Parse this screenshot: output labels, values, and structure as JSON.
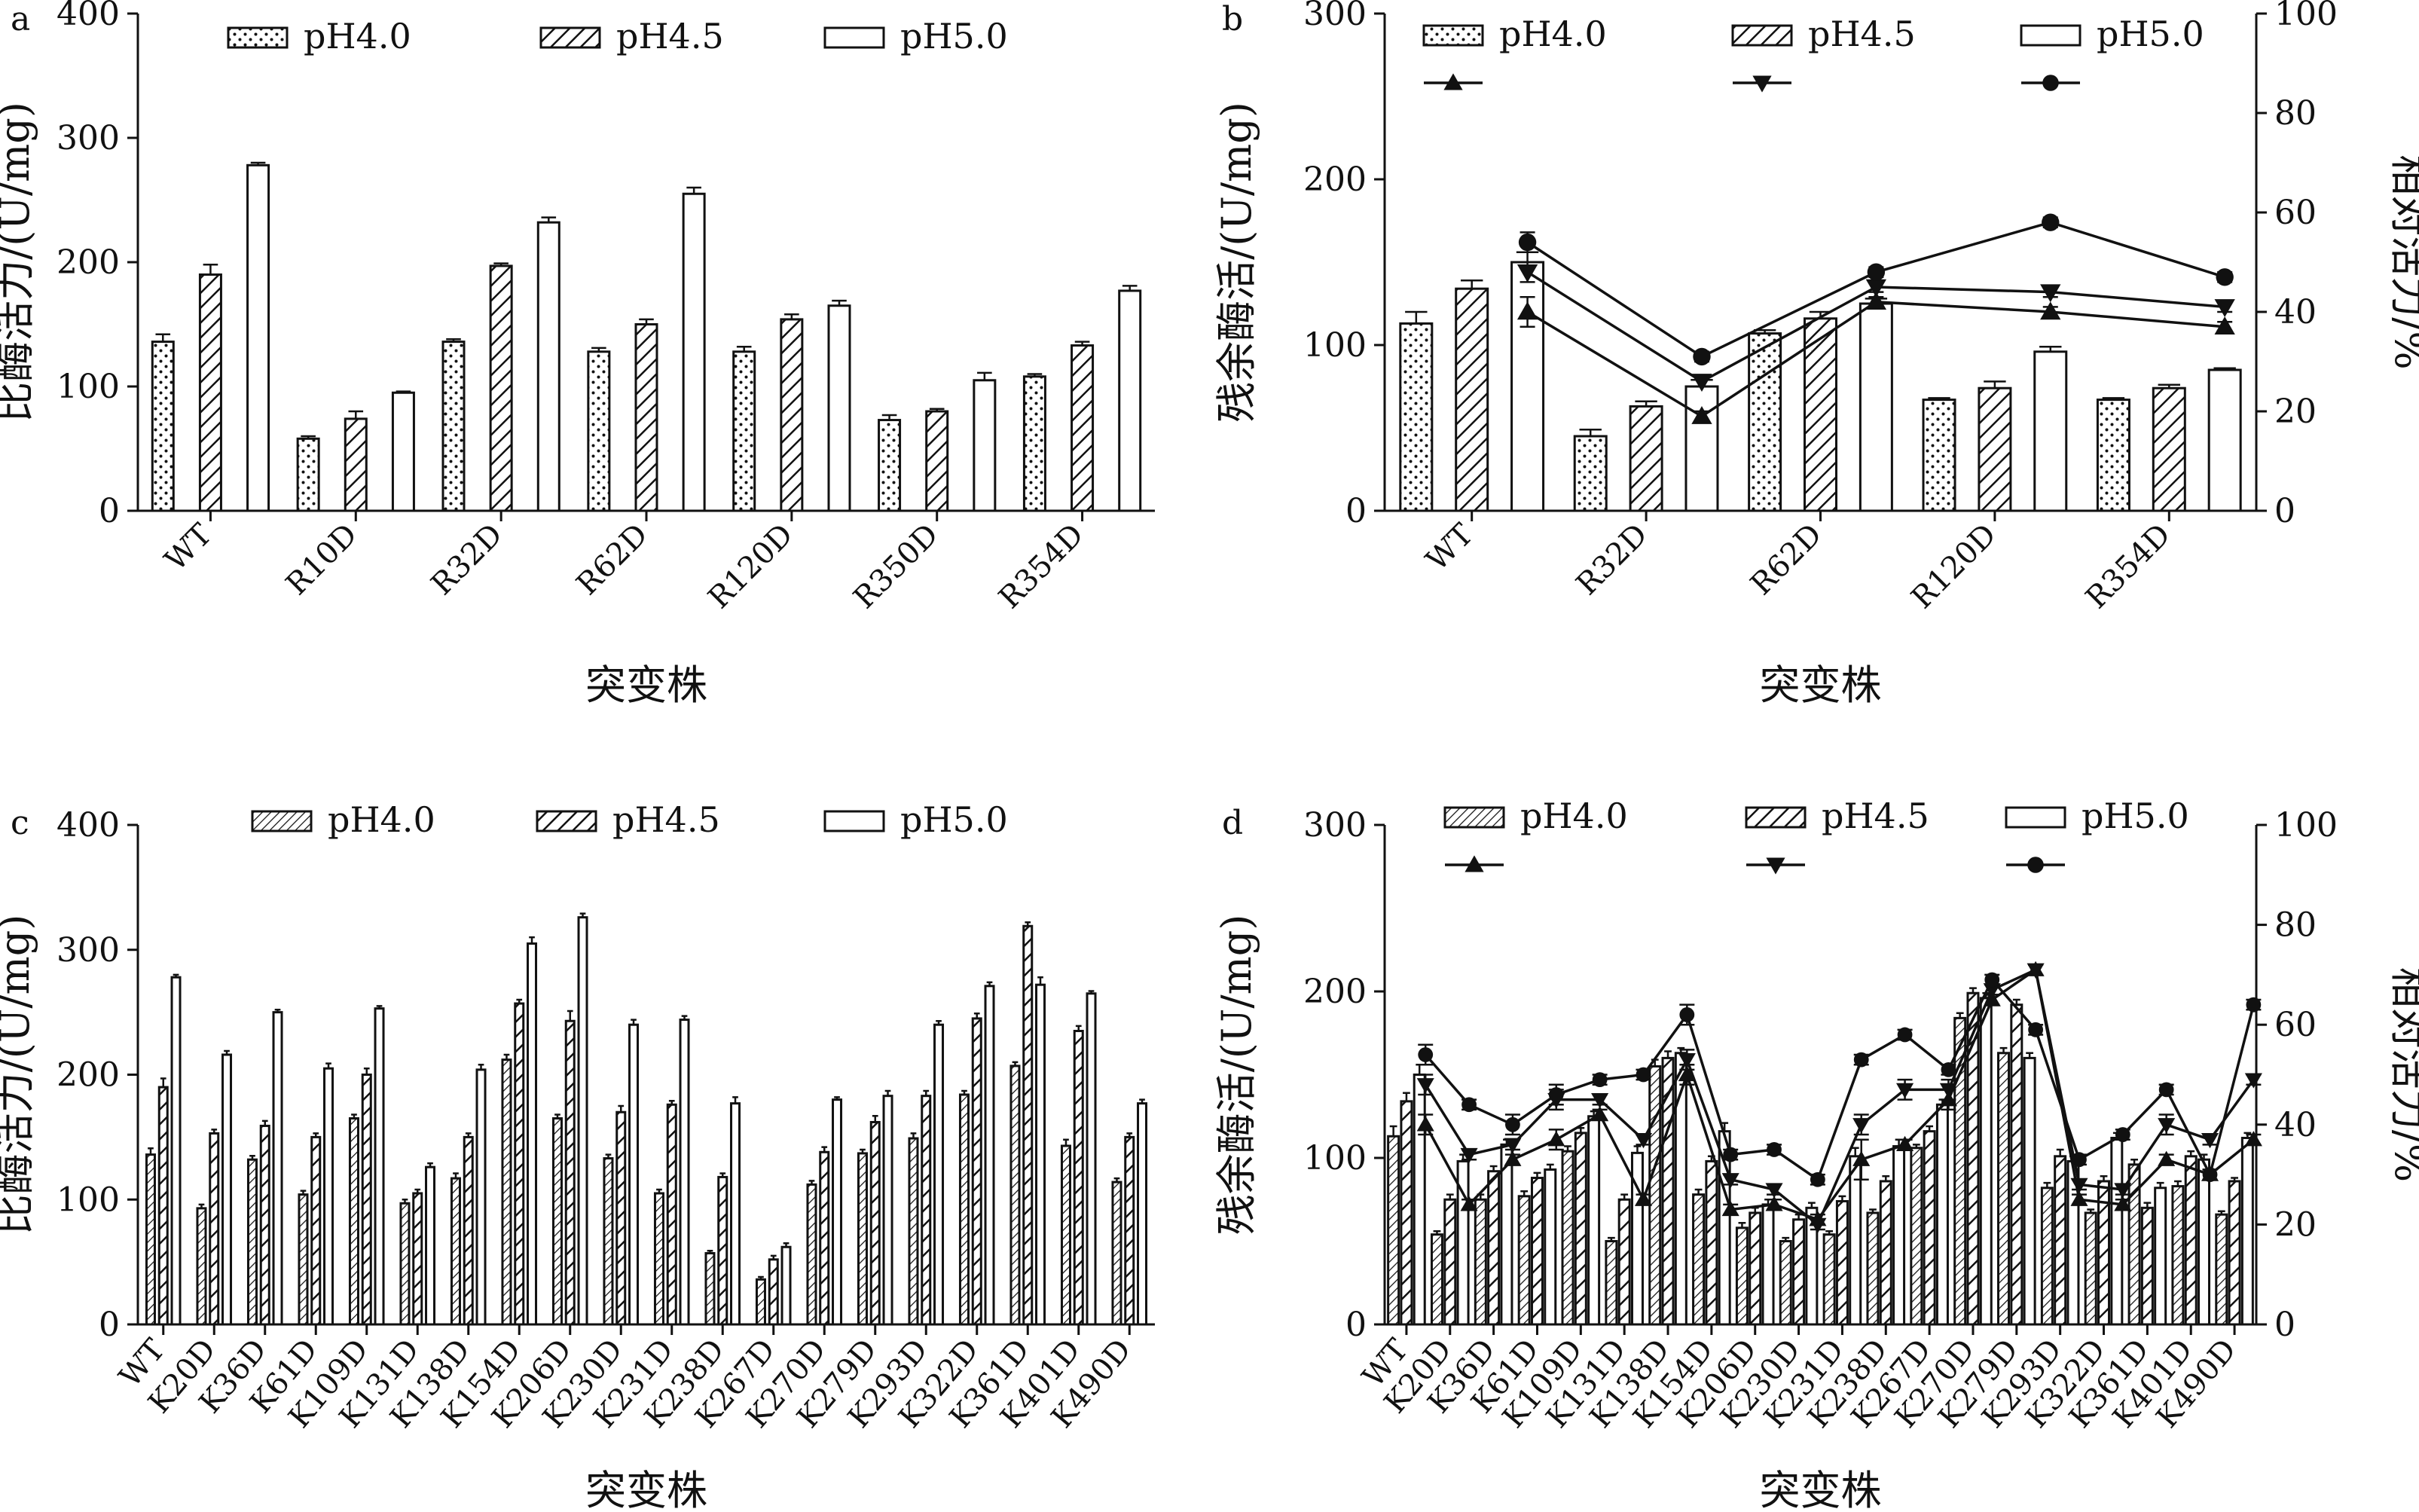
{
  "chart_data": [
    {
      "panel": "a",
      "type": "bar",
      "xlabel": "突变株",
      "ylabel": "比酶活力/(U/mg)",
      "ylim": [
        0,
        400
      ],
      "yticks": [
        0,
        100,
        200,
        300,
        400
      ],
      "legend_placement": "top",
      "categories": [
        "WT",
        "R10D",
        "R32D",
        "R62D",
        "R120D",
        "R350D",
        "R354D"
      ],
      "series": [
        {
          "name": "pH4.0",
          "pattern": "dots",
          "values": [
            136,
            58,
            136,
            128,
            128,
            73,
            108
          ],
          "errors": [
            6,
            2,
            2,
            3,
            4,
            4,
            2
          ]
        },
        {
          "name": "pH4.5",
          "pattern": "hatch",
          "values": [
            190,
            74,
            197,
            150,
            154,
            80,
            133
          ],
          "errors": [
            8,
            6,
            2,
            4,
            4,
            2,
            3
          ]
        },
        {
          "name": "pH5.0",
          "pattern": "open",
          "values": [
            278,
            95,
            232,
            255,
            165,
            105,
            177
          ],
          "errors": [
            2,
            1,
            4,
            5,
            4,
            6,
            4
          ]
        }
      ]
    },
    {
      "panel": "b",
      "type": "bar",
      "xlabel": "突变株",
      "ylabel": "残余酶活/(U/mg)",
      "y2label": "相对活力/%",
      "ylim": [
        0,
        300
      ],
      "yticks": [
        0,
        100,
        200,
        300
      ],
      "y2lim": [
        0,
        100
      ],
      "y2ticks": [
        0,
        20,
        40,
        60,
        80,
        100
      ],
      "legend_placement": "top",
      "categories": [
        "WT",
        "R32D",
        "R62D",
        "R120D",
        "R354D"
      ],
      "series": [
        {
          "name": "pH4.0",
          "pattern": "dots",
          "values": [
            113,
            45,
            107,
            67,
            67
          ],
          "errors": [
            7,
            4,
            2,
            1,
            1
          ]
        },
        {
          "name": "pH4.5",
          "pattern": "hatch",
          "values": [
            134,
            63,
            116,
            74,
            74
          ],
          "errors": [
            5,
            3,
            4,
            4,
            2
          ]
        },
        {
          "name": "pH5.0",
          "pattern": "open",
          "values": [
            150,
            75,
            125,
            96,
            85
          ],
          "errors": [
            6,
            4,
            3,
            3,
            1
          ]
        }
      ],
      "line_series": [
        {
          "name": "",
          "legend_for": "pH4.0",
          "marker": "triangle-up",
          "values": [
            40,
            19,
            42,
            40,
            37
          ],
          "errors": [
            3,
            1,
            1,
            1,
            1
          ]
        },
        {
          "name": "",
          "legend_for": "pH4.5",
          "marker": "triangle-down",
          "values": [
            48,
            26,
            45,
            44,
            41
          ],
          "errors": [
            2,
            1,
            1,
            1,
            1
          ]
        },
        {
          "name": "",
          "legend_for": "pH5.0",
          "marker": "circle",
          "values": [
            54,
            31,
            48,
            58,
            47
          ],
          "errors": [
            2,
            1,
            1,
            1,
            1
          ]
        }
      ]
    },
    {
      "panel": "c",
      "type": "bar",
      "xlabel": "突变株",
      "ylabel": "比酶活力/(U/mg)",
      "ylim": [
        0,
        400
      ],
      "yticks": [
        0,
        100,
        200,
        300,
        400
      ],
      "legend_placement": "top",
      "categories": [
        "WT",
        "K20D",
        "K36D",
        "K61D",
        "K109D",
        "K131D",
        "K138D",
        "K154D",
        "K206D",
        "K230D",
        "K231D",
        "K238D",
        "K267D",
        "K270D",
        "K279D",
        "K293D",
        "K322D",
        "K361D",
        "K401D",
        "K490D"
      ],
      "series": [
        {
          "name": "pH4.0",
          "pattern": "dense-hatch",
          "values": [
            136,
            93,
            132,
            104,
            165,
            97,
            117,
            212,
            165,
            133,
            105,
            57,
            36,
            112,
            137,
            149,
            184,
            207,
            143,
            114
          ],
          "errors": [
            5,
            3,
            3,
            3,
            3,
            3,
            4,
            4,
            3,
            3,
            3,
            2,
            2,
            3,
            3,
            4,
            3,
            3,
            5,
            3
          ]
        },
        {
          "name": "pH4.5",
          "pattern": "hatch",
          "values": [
            190,
            153,
            159,
            150,
            200,
            105,
            150,
            257,
            243,
            170,
            176,
            118,
            52,
            138,
            162,
            183,
            245,
            319,
            235,
            150
          ],
          "errors": [
            7,
            3,
            4,
            3,
            5,
            3,
            3,
            3,
            8,
            5,
            3,
            3,
            3,
            4,
            5,
            4,
            4,
            3,
            4,
            3
          ]
        },
        {
          "name": "pH5.0",
          "pattern": "open",
          "values": [
            278,
            216,
            250,
            205,
            253,
            126,
            204,
            305,
            326,
            240,
            244,
            177,
            62,
            180,
            183,
            240,
            271,
            272,
            265,
            177
          ],
          "errors": [
            2,
            3,
            2,
            4,
            2,
            3,
            4,
            5,
            3,
            4,
            3,
            5,
            3,
            2,
            4,
            3,
            3,
            6,
            2,
            3
          ]
        }
      ]
    },
    {
      "panel": "d",
      "type": "bar",
      "xlabel": "突变株",
      "ylabel": "残余酶活/(U/mg)",
      "y2label": "相对活力/%",
      "ylim": [
        0,
        300
      ],
      "yticks": [
        0,
        100,
        200,
        300
      ],
      "y2lim": [
        0,
        100
      ],
      "y2ticks": [
        0,
        20,
        40,
        60,
        80,
        100
      ],
      "legend_placement": "top",
      "categories": [
        "WT",
        "K20D",
        "K36D",
        "K61D",
        "K109D",
        "K131D",
        "K138D",
        "K154D",
        "K206D",
        "K230D",
        "K231D",
        "K238D",
        "K267D",
        "K270D",
        "K279D",
        "K293D",
        "K322D",
        "K361D",
        "K401D",
        "K490D"
      ],
      "series": [
        {
          "name": "pH4.0",
          "pattern": "dense-hatch",
          "values": [
            113,
            54,
            75,
            77,
            104,
            50,
            155,
            78,
            58,
            50,
            54,
            67,
            106,
            184,
            163,
            82,
            67,
            96,
            83,
            66
          ],
          "errors": [
            6,
            2,
            3,
            3,
            3,
            2,
            4,
            3,
            3,
            2,
            2,
            2,
            2,
            3,
            3,
            3,
            2,
            3,
            3,
            2
          ]
        },
        {
          "name": "pH4.5",
          "pattern": "hatch",
          "values": [
            134,
            75,
            92,
            88,
            115,
            75,
            160,
            98,
            67,
            63,
            74,
            86,
            116,
            199,
            192,
            101,
            86,
            70,
            101,
            86
          ],
          "errors": [
            5,
            3,
            3,
            3,
            3,
            3,
            4,
            3,
            3,
            3,
            3,
            3,
            3,
            3,
            3,
            4,
            3,
            3,
            3,
            2
          ]
        },
        {
          "name": "pH5.0",
          "pattern": "open",
          "values": [
            150,
            98,
            108,
            93,
            125,
            103,
            163,
            116,
            72,
            70,
            101,
            107,
            132,
            196,
            160,
            98,
            112,
            82,
            99,
            112
          ],
          "errors": [
            6,
            4,
            3,
            3,
            3,
            4,
            3,
            5,
            3,
            3,
            5,
            4,
            3,
            3,
            3,
            3,
            3,
            3,
            3,
            3
          ]
        }
      ],
      "line_series": [
        {
          "name": "",
          "legend_for": "pH4.0",
          "marker": "triangle-up",
          "values": [
            40,
            24,
            33,
            37,
            42,
            25,
            50,
            23,
            24,
            21,
            33,
            36,
            45,
            65,
            71,
            25,
            24,
            33,
            30,
            37
          ],
          "errors": [
            2,
            1,
            1,
            2,
            1,
            1,
            2,
            1,
            1,
            1,
            4,
            1,
            2,
            1,
            1,
            1,
            1,
            1,
            1,
            1
          ]
        },
        {
          "name": "",
          "legend_for": "pH4.5",
          "marker": "triangle-down",
          "values": [
            48,
            34,
            36,
            45,
            45,
            37,
            53,
            29,
            27,
            20,
            40,
            47,
            47,
            67,
            71,
            28,
            27,
            40,
            37,
            49
          ],
          "errors": [
            2,
            1,
            1,
            2,
            1,
            1,
            2,
            1,
            1,
            1,
            2,
            2,
            2,
            1,
            1,
            1,
            1,
            2,
            1,
            1
          ]
        },
        {
          "name": "",
          "legend_for": "pH5.0",
          "marker": "circle",
          "values": [
            54,
            44,
            40,
            46,
            49,
            50,
            62,
            34,
            35,
            29,
            53,
            58,
            51,
            69,
            59,
            33,
            38,
            47,
            30,
            64
          ],
          "errors": [
            2,
            1,
            2,
            2,
            1,
            1,
            2,
            1,
            1,
            1,
            1,
            1,
            1,
            1,
            1,
            1,
            1,
            1,
            1,
            1
          ]
        }
      ]
    }
  ]
}
